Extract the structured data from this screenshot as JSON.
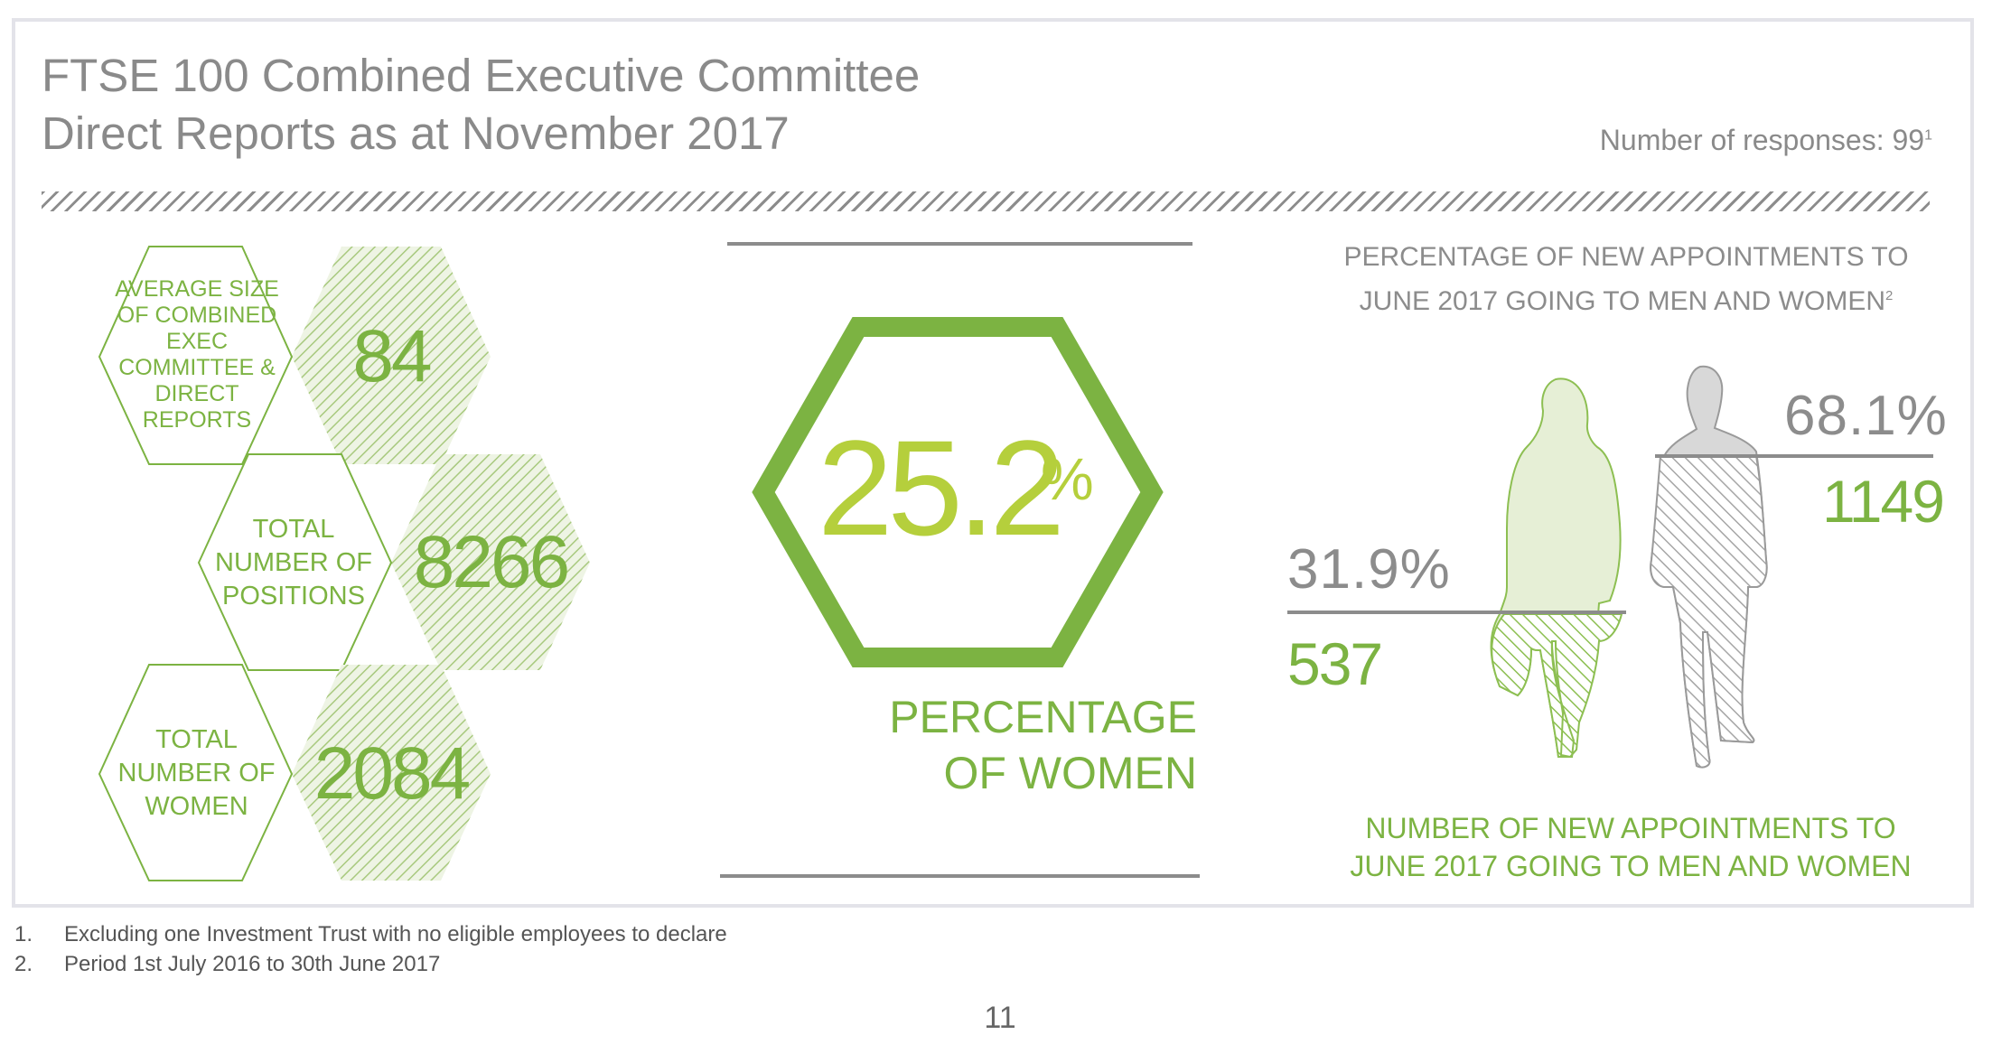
{
  "header": {
    "title_line1": "FTSE 100 Combined Executive Committee",
    "title_line2": "Direct Reports as at November 2017",
    "responses_label": "Number of responses: 99",
    "responses_footnote": "1"
  },
  "stats": [
    {
      "label": "AVERAGE SIZE OF COMBINED EXEC COMMITTEE & DIRECT REPORTS",
      "value": "84"
    },
    {
      "label": "TOTAL NUMBER OF POSITIONS",
      "value": "8266"
    },
    {
      "label": "TOTAL NUMBER OF WOMEN",
      "value": "2084"
    }
  ],
  "center": {
    "value": "25.2",
    "unit": "%",
    "label_line1": "PERCENTAGE",
    "label_line2": "OF WOMEN"
  },
  "appointments": {
    "title_line1": "PERCENTAGE OF NEW APPOINTMENTS TO",
    "title_line2": "JUNE 2017 GOING TO MEN AND WOMEN",
    "title_footnote": "2",
    "men_percentage": "68.1%",
    "men_count": "1149",
    "women_percentage": "31.9%",
    "women_count": "537",
    "bottom_line1": "NUMBER OF NEW APPOINTMENTS TO",
    "bottom_line2": "JUNE 2017 GOING TO MEN AND WOMEN"
  },
  "footnotes": [
    {
      "num": "1.",
      "text": "Excluding one Investment Trust with no eligible employees to declare"
    },
    {
      "num": "2.",
      "text": "Period 1st July 2016 to 30th June 2017"
    }
  ],
  "page_number": "11",
  "colors": {
    "green": "#7cb342",
    "lime": "#b5cf3c",
    "gray": "#8c8c8c",
    "hex_fill_light": "#e6efd6"
  },
  "icons": {
    "woman": "woman-silhouette-icon",
    "man": "man-silhouette-icon"
  }
}
